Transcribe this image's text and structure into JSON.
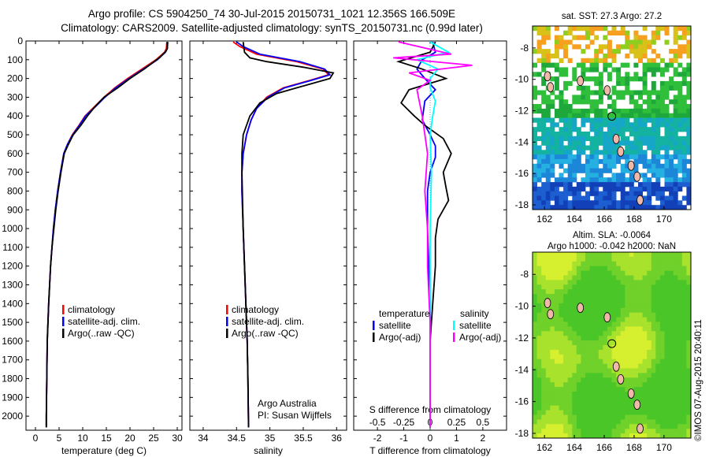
{
  "header": {
    "line1": "Argo profile: CS 5904250_74 30-Jul-2015 20150731_1021 12.356S 166.509E",
    "line2": "Climatology: CARS2009. Satellite-adjusted climatology: synTS_20150731.nc (0.99d later)"
  },
  "depth_axis": {
    "ticks": [
      0,
      100,
      200,
      300,
      400,
      500,
      600,
      700,
      800,
      900,
      1000,
      1100,
      1200,
      1300,
      1400,
      1500,
      1600,
      1700,
      1800,
      1900,
      2000
    ],
    "range": [
      0,
      2075
    ]
  },
  "chart_data": [
    {
      "type": "line",
      "panel": "temperature",
      "xlabel": "temperature (deg C)",
      "xticks": [
        0,
        5,
        10,
        15,
        20,
        25,
        30
      ],
      "xlim": [
        -2,
        31
      ],
      "legend": [
        "climatology",
        "satellite-adj. clim.",
        "Argo(..raw -QC)"
      ],
      "series": [
        {
          "name": "climatology",
          "color": "#ff0000",
          "x": [
            27.8,
            27.7,
            27.3,
            25.5,
            22.5,
            19.5,
            16.8,
            14.5,
            12.5,
            10.5,
            9.2,
            7.8,
            6.8,
            6.0,
            5.3,
            4.7,
            4.2,
            3.8,
            3.5,
            3.2,
            3.0,
            2.8,
            2.5,
            2.4,
            2.3,
            2.3
          ],
          "depth": [
            5,
            40,
            60,
            100,
            150,
            200,
            250,
            300,
            350,
            400,
            450,
            500,
            550,
            600,
            700,
            800,
            900,
            1000,
            1100,
            1200,
            1300,
            1400,
            1600,
            1800,
            2000,
            2060
          ]
        },
        {
          "name": "satellite-adj. clim.",
          "color": "#0000ff",
          "x": [
            28.0,
            27.9,
            27.5,
            25.8,
            22.8,
            19.8,
            17.0,
            14.7,
            12.7,
            10.6,
            9.3,
            7.9,
            6.8,
            6.0,
            5.3,
            4.7,
            4.2,
            3.8,
            3.5,
            3.2,
            3.0,
            2.8,
            2.5,
            2.4,
            2.3,
            2.3
          ],
          "depth": [
            5,
            40,
            60,
            100,
            150,
            200,
            250,
            300,
            350,
            400,
            450,
            500,
            550,
            600,
            700,
            800,
            900,
            1000,
            1100,
            1200,
            1300,
            1400,
            1600,
            1800,
            2000,
            2060
          ]
        },
        {
          "name": "Argo(..raw -QC)",
          "color": "#000000",
          "x": [
            27.9,
            27.9,
            27.6,
            26.2,
            23.0,
            20.0,
            17.4,
            14.5,
            12.6,
            11.0,
            9.6,
            8.0,
            7.0,
            6.1,
            5.4,
            4.8,
            4.3,
            3.9,
            3.5,
            3.2,
            3.0,
            2.8,
            2.5,
            2.4,
            2.3,
            2.3
          ],
          "depth": [
            5,
            40,
            55,
            90,
            150,
            200,
            250,
            300,
            350,
            400,
            450,
            500,
            550,
            600,
            700,
            800,
            900,
            1000,
            1100,
            1200,
            1300,
            1400,
            1600,
            1800,
            2000,
            2060
          ]
        }
      ]
    },
    {
      "type": "line",
      "panel": "salinity",
      "xlabel": "salinity",
      "xticks": [
        34,
        34.5,
        35,
        35.5,
        36
      ],
      "xtick_labels": [
        "34",
        "34.5",
        "35",
        "35.5",
        "36"
      ],
      "xlim": [
        33.8,
        36.15
      ],
      "legend": [
        "climatology",
        "satellite-adj. clim.",
        "Argo(..raw -QC)"
      ],
      "annotation": [
        "Argo Australia",
        "PI: Susan Wijffels"
      ],
      "series": [
        {
          "name": "climatology",
          "color": "#ff0000",
          "x": [
            34.45,
            34.55,
            34.8,
            35.4,
            35.8,
            35.88,
            35.6,
            35.2,
            34.95,
            34.8,
            34.72,
            34.65,
            34.6,
            34.58,
            34.58,
            34.6,
            34.62,
            34.64,
            34.66,
            34.67,
            34.68
          ],
          "depth": [
            5,
            30,
            70,
            110,
            150,
            180,
            210,
            250,
            300,
            360,
            420,
            500,
            600,
            700,
            800,
            1000,
            1200,
            1400,
            1600,
            1800,
            2060
          ]
        },
        {
          "name": "satellite-adj. clim.",
          "color": "#0000ff",
          "x": [
            34.5,
            34.6,
            34.85,
            35.45,
            35.82,
            35.9,
            35.62,
            35.22,
            34.97,
            34.8,
            34.72,
            34.65,
            34.6,
            34.58,
            34.58,
            34.6,
            34.62,
            34.64,
            34.66,
            34.67,
            34.68
          ],
          "depth": [
            5,
            30,
            70,
            110,
            150,
            180,
            210,
            250,
            300,
            360,
            420,
            500,
            600,
            700,
            800,
            1000,
            1200,
            1400,
            1600,
            1800,
            2060
          ]
        },
        {
          "name": "Argo(..raw -QC)",
          "color": "#000000",
          "x": [
            34.6,
            34.62,
            34.7,
            34.95,
            35.5,
            35.95,
            35.9,
            35.5,
            35.1,
            34.85,
            34.7,
            34.6,
            34.58,
            34.58,
            34.6,
            34.62,
            34.64,
            34.66,
            34.67,
            34.68
          ],
          "depth": [
            5,
            60,
            90,
            110,
            140,
            170,
            200,
            240,
            280,
            330,
            400,
            500,
            600,
            700,
            1000,
            1200,
            1400,
            1600,
            1800,
            2060
          ]
        }
      ]
    },
    {
      "type": "line",
      "panel": "difference",
      "xlabel": "T difference from climatology",
      "xlabel_top": "S difference from climatology",
      "xticks": [
        -2,
        -1,
        0,
        1,
        2
      ],
      "xtick_labels": [
        "-2",
        "-1",
        "0",
        "1",
        "2"
      ],
      "xticks_top": [
        -0.5,
        -0.25,
        0,
        0.25,
        0.5
      ],
      "xtick_labels_top": [
        "-0.5",
        "-0.25",
        "0",
        "0.25",
        "0.5"
      ],
      "xlim": [
        -2.9,
        2.9
      ],
      "legend_left_title": "temperature",
      "legend_right_title": "salinity",
      "legend": [
        "satellite",
        "Argo(-adj)",
        "satellite",
        "Argo(-adj)"
      ],
      "series": [
        {
          "name": "temperature satellite",
          "color": "#0000ff",
          "x": [
            0.1,
            0.2,
            -0.3,
            -0.5,
            -0.2,
            0.2,
            -0.2,
            -0.3,
            0.0,
            0.2,
            0.2,
            0.0,
            -0.1,
            -0.1,
            0.0,
            0.0
          ],
          "depth": [
            5,
            60,
            100,
            150,
            200,
            260,
            320,
            420,
            500,
            560,
            620,
            700,
            800,
            1000,
            1400,
            2060
          ]
        },
        {
          "name": "temperature Argo(-adj)",
          "color": "#000000",
          "x": [
            0.2,
            0.0,
            -1.2,
            -0.3,
            0.6,
            -0.8,
            -1.1,
            -0.6,
            -0.2,
            0.5,
            0.8,
            0.5,
            0.6,
            0.7,
            0.3,
            0.2,
            0.2,
            0.1,
            0.0,
            0.0,
            0.0
          ],
          "depth": [
            5,
            60,
            110,
            150,
            200,
            260,
            330,
            400,
            450,
            520,
            600,
            700,
            780,
            850,
            950,
            1050,
            1200,
            1400,
            1600,
            1800,
            2060
          ]
        },
        {
          "name": "salinity satellite",
          "color": "#00ffff",
          "x": [
            0.0,
            0.7,
            -0.5,
            0.3,
            0.0,
            0.0,
            0.2,
            0.1,
            0.0,
            0.05,
            0.0,
            0.0,
            0.0
          ],
          "depth": [
            5,
            60,
            100,
            150,
            200,
            250,
            320,
            400,
            500,
            700,
            1000,
            1500,
            2060
          ]
        },
        {
          "name": "salinity Argo(-adj)",
          "color": "#ff00ff",
          "x": [
            -1.2,
            0.8,
            -1.4,
            1.6,
            -0.8,
            0.0,
            -0.5,
            -0.3,
            -0.1,
            -0.2,
            -0.1,
            -0.1,
            0.0,
            0.0
          ],
          "depth": [
            5,
            70,
            90,
            130,
            170,
            210,
            260,
            400,
            600,
            800,
            1000,
            1200,
            1500,
            2060
          ]
        }
      ]
    }
  ],
  "maps": {
    "sst": {
      "title": "sat. SST: 27.3 Argo: 27.2",
      "yticks": [
        -8,
        -10,
        -12,
        -14,
        -16,
        -18
      ],
      "xticks": [
        162,
        164,
        166,
        168,
        170
      ],
      "xlim": [
        161.2,
        171.8
      ],
      "ylim": [
        -18.3,
        -6.6
      ],
      "argo_point": [
        166.509,
        -12.356
      ]
    },
    "sla": {
      "title_line1": "Altim. SLA: -0.0064",
      "title_line2": "Argo h1000: -0.042 h2000: NaN",
      "yticks": [
        -8,
        -10,
        -12,
        -14,
        -16,
        -18
      ],
      "xticks": [
        162,
        164,
        166,
        168,
        170
      ],
      "xlim": [
        161.2,
        171.8
      ],
      "ylim": [
        -18.3,
        -6.6
      ],
      "argo_point": [
        166.509,
        -12.356
      ]
    }
  },
  "credit": "©IMOS 07-Aug-2015 20:40:11"
}
